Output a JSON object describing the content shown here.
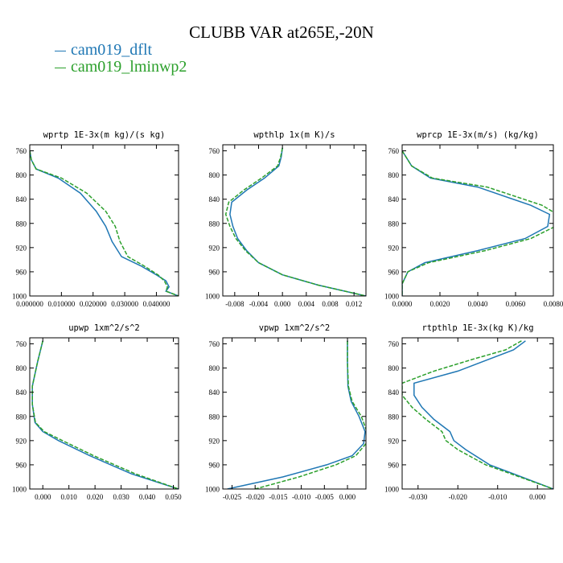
{
  "title": "CLUBB VAR at265E,-20N",
  "legend": [
    {
      "label": "cam019_dflt",
      "color": "#1f77b4"
    },
    {
      "label": "cam019_lminwp2",
      "color": "#2ca02c"
    }
  ],
  "chart_data": [
    {
      "type": "line",
      "title": "wprtp  1E-3x(m kg)/(s kg)",
      "xlim": [
        0.0,
        0.047
      ],
      "ylim": [
        1000,
        750
      ],
      "xticks": [
        0.0,
        0.01,
        0.02,
        0.03,
        0.04
      ],
      "xtick_labels": [
        "0.000000",
        "0.010000",
        "0.020000",
        "0.030000",
        "0.040000"
      ],
      "yticks": [
        760,
        800,
        840,
        880,
        920,
        960,
        1000
      ],
      "series": [
        {
          "name": "cam019_dflt",
          "x": [
            0.0,
            0.0005,
            0.002,
            0.009,
            0.016,
            0.021,
            0.024,
            0.026,
            0.029,
            0.035,
            0.04,
            0.043,
            0.044,
            0.043,
            0.047
          ],
          "y": [
            760,
            775,
            790,
            805,
            830,
            860,
            885,
            910,
            935,
            950,
            965,
            975,
            985,
            992,
            1000
          ]
        },
        {
          "name": "cam019_lminwp2",
          "x": [
            0.0,
            0.0005,
            0.002,
            0.01,
            0.018,
            0.024,
            0.027,
            0.0285,
            0.031,
            0.036,
            0.0405,
            0.0425,
            0.0435,
            0.043,
            0.047
          ],
          "y": [
            760,
            775,
            790,
            805,
            830,
            860,
            885,
            910,
            935,
            950,
            965,
            975,
            985,
            992,
            1000
          ]
        }
      ]
    },
    {
      "type": "line",
      "title": "wpthlp  1x(m K)/s",
      "xlim": [
        -0.01,
        0.014
      ],
      "ylim": [
        1000,
        750
      ],
      "xticks": [
        -0.008,
        -0.004,
        0.0,
        0.004,
        0.008,
        0.012
      ],
      "xtick_labels": [
        "-0.008",
        "-0.004",
        "0.000",
        "0.004",
        "0.008",
        "0.012"
      ],
      "yticks": [
        760,
        800,
        840,
        880,
        920,
        960,
        1000
      ],
      "series": [
        {
          "name": "cam019_dflt",
          "x": [
            0.0,
            -0.0002,
            -0.0006,
            -0.003,
            -0.006,
            -0.0085,
            -0.0088,
            -0.0083,
            -0.0075,
            -0.006,
            -0.004,
            0.0,
            0.006,
            0.014
          ],
          "y": [
            755,
            770,
            785,
            805,
            825,
            845,
            865,
            885,
            905,
            925,
            945,
            965,
            982,
            1000
          ]
        },
        {
          "name": "cam019_lminwp2",
          "x": [
            0.0,
            -0.0003,
            -0.0008,
            -0.0035,
            -0.0065,
            -0.009,
            -0.0095,
            -0.0088,
            -0.0078,
            -0.0062,
            -0.004,
            0.0,
            0.006,
            0.014
          ],
          "y": [
            755,
            770,
            785,
            805,
            825,
            845,
            865,
            885,
            905,
            925,
            945,
            965,
            982,
            1000
          ]
        }
      ]
    },
    {
      "type": "line",
      "title": "wprcp  1E-3x(m/s) (kg/kg)",
      "xlim": [
        0.0,
        0.008
      ],
      "ylim": [
        1000,
        750
      ],
      "xticks": [
        0.0,
        0.002,
        0.004,
        0.006,
        0.008
      ],
      "xtick_labels": [
        "0.0000",
        "0.0020",
        "0.0040",
        "0.0060",
        "0.0080"
      ],
      "yticks": [
        760,
        800,
        840,
        880,
        920,
        960,
        1000
      ],
      "series": [
        {
          "name": "cam019_dflt",
          "x": [
            0.0,
            0.0002,
            0.0005,
            0.0015,
            0.004,
            0.0068,
            0.0078,
            0.0077,
            0.0065,
            0.004,
            0.0012,
            0.0003,
            0.0,
            0.0
          ],
          "y": [
            760,
            770,
            785,
            805,
            820,
            850,
            865,
            885,
            905,
            925,
            945,
            960,
            980,
            1000
          ]
        },
        {
          "name": "cam019_lminwp2",
          "x": [
            0.0,
            0.0002,
            0.0005,
            0.0016,
            0.0045,
            0.0074,
            0.0082,
            0.0081,
            0.0068,
            0.0044,
            0.0014,
            0.0003,
            0.0,
            0.0
          ],
          "y": [
            760,
            770,
            785,
            805,
            820,
            850,
            865,
            885,
            905,
            925,
            945,
            960,
            980,
            1000
          ]
        }
      ]
    },
    {
      "type": "line",
      "title": "upwp  1xm^2/s^2",
      "xlim": [
        -0.005,
        0.052
      ],
      "ylim": [
        1000,
        750
      ],
      "xticks": [
        0.0,
        0.01,
        0.02,
        0.03,
        0.04,
        0.05
      ],
      "xtick_labels": [
        "0.000",
        "0.010",
        "0.020",
        "0.030",
        "0.040",
        "0.050"
      ],
      "yticks": [
        760,
        800,
        840,
        880,
        920,
        960,
        1000
      ],
      "series": [
        {
          "name": "cam019_dflt",
          "x": [
            0.0,
            -0.002,
            -0.004,
            -0.004,
            -0.003,
            0.0,
            0.006,
            0.018,
            0.034,
            0.052
          ],
          "y": [
            755,
            790,
            830,
            860,
            890,
            905,
            920,
            945,
            975,
            1000
          ]
        },
        {
          "name": "cam019_lminwp2",
          "x": [
            0.0,
            -0.002,
            -0.004,
            -0.004,
            -0.0028,
            0.0005,
            0.0075,
            0.0195,
            0.0355,
            0.052
          ],
          "y": [
            755,
            790,
            830,
            860,
            890,
            905,
            920,
            945,
            975,
            1000
          ]
        }
      ]
    },
    {
      "type": "line",
      "title": "vpwp  1xm^2/s^2",
      "xlim": [
        -0.027,
        0.004
      ],
      "ylim": [
        1000,
        750
      ],
      "xticks": [
        -0.025,
        -0.02,
        -0.015,
        -0.01,
        -0.005,
        0.0
      ],
      "xtick_labels": [
        "-0.025",
        "-0.020",
        "-0.015",
        "-0.010",
        "-0.005",
        "0.000"
      ],
      "yticks": [
        760,
        800,
        840,
        880,
        920,
        960,
        1000
      ],
      "series": [
        {
          "name": "cam019_dflt",
          "x": [
            0.0,
            0.0,
            0.0001,
            0.0008,
            0.0025,
            0.0038,
            0.0035,
            0.001,
            -0.0045,
            -0.014,
            -0.026
          ],
          "y": [
            755,
            790,
            830,
            855,
            880,
            905,
            925,
            945,
            960,
            980,
            1000
          ]
        },
        {
          "name": "cam019_lminwp2",
          "x": [
            0.0,
            0.0,
            0.0002,
            0.001,
            0.003,
            0.0042,
            0.004,
            0.0018,
            -0.0025,
            -0.0105,
            -0.02
          ],
          "y": [
            755,
            790,
            830,
            855,
            880,
            905,
            925,
            945,
            960,
            980,
            1000
          ]
        }
      ]
    },
    {
      "type": "line",
      "title": "rtpthlp  1E-3x(kg K)/kg",
      "xlim": [
        -0.034,
        0.004
      ],
      "ylim": [
        1000,
        750
      ],
      "xticks": [
        -0.03,
        -0.02,
        -0.01,
        0.0
      ],
      "xtick_labels": [
        "-0.030",
        "-0.020",
        "-0.010",
        "0.000"
      ],
      "yticks": [
        760,
        800,
        840,
        880,
        920,
        960,
        1000
      ],
      "series": [
        {
          "name": "cam019_dflt",
          "x": [
            -0.003,
            -0.006,
            -0.012,
            -0.02,
            -0.031,
            -0.031,
            -0.029,
            -0.026,
            -0.022,
            -0.021,
            -0.018,
            -0.012,
            0.004
          ],
          "y": [
            755,
            770,
            785,
            805,
            825,
            845,
            865,
            885,
            905,
            920,
            935,
            960,
            1000
          ]
        },
        {
          "name": "cam019_lminwp2",
          "x": [
            -0.004,
            -0.008,
            -0.016,
            -0.026,
            -0.034,
            -0.034,
            -0.0315,
            -0.028,
            -0.024,
            -0.023,
            -0.02,
            -0.013,
            0.004
          ],
          "y": [
            755,
            770,
            785,
            805,
            825,
            845,
            865,
            885,
            905,
            920,
            935,
            960,
            1000
          ]
        }
      ]
    }
  ]
}
